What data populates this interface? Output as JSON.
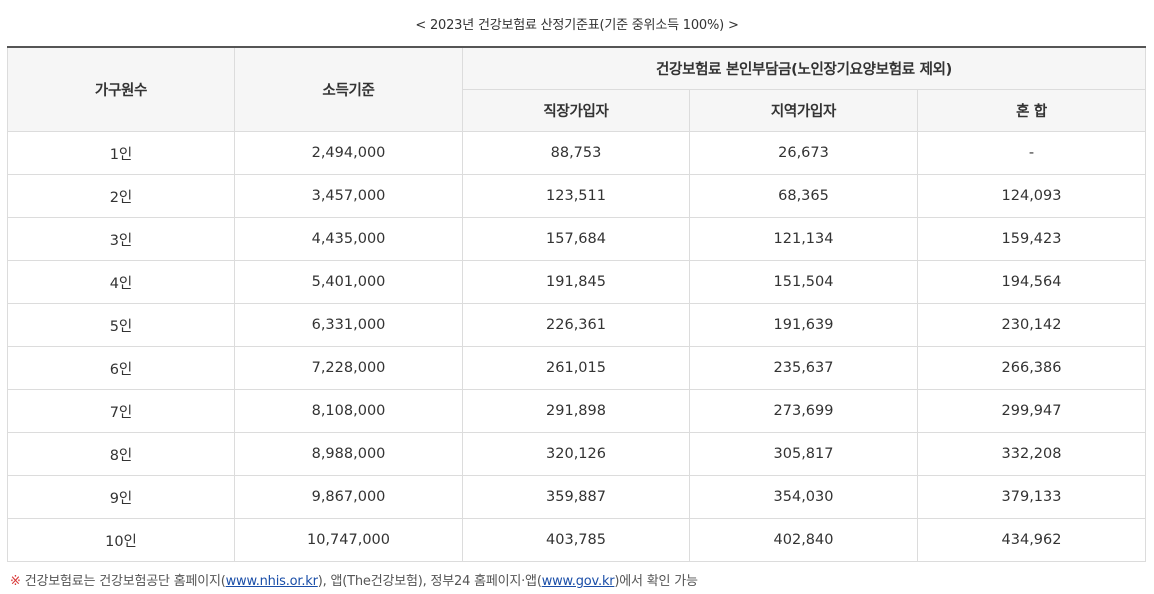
{
  "caption": "< 2023년 건강보험료 산정기준표(기준 중위소득 100%) >",
  "table": {
    "headers": {
      "household": "가구원수",
      "income": "소득기준",
      "premium_group": "건강보험료 본인부담금(노인장기요양보험료 제외)",
      "workplace": "직장가입자",
      "regional": "지역가입자",
      "mixed": "혼 합"
    },
    "rows": [
      {
        "household": "1인",
        "income": "2,494,000",
        "workplace": "88,753",
        "regional": "26,673",
        "mixed": "-"
      },
      {
        "household": "2인",
        "income": "3,457,000",
        "workplace": "123,511",
        "regional": "68,365",
        "mixed": "124,093"
      },
      {
        "household": "3인",
        "income": "4,435,000",
        "workplace": "157,684",
        "regional": "121,134",
        "mixed": "159,423"
      },
      {
        "household": "4인",
        "income": "5,401,000",
        "workplace": "191,845",
        "regional": "151,504",
        "mixed": "194,564"
      },
      {
        "household": "5인",
        "income": "6,331,000",
        "workplace": "226,361",
        "regional": "191,639",
        "mixed": "230,142"
      },
      {
        "household": "6인",
        "income": "7,228,000",
        "workplace": "261,015",
        "regional": "235,637",
        "mixed": "266,386"
      },
      {
        "household": "7인",
        "income": "8,108,000",
        "workplace": "291,898",
        "regional": "273,699",
        "mixed": "299,947"
      },
      {
        "household": "8인",
        "income": "8,988,000",
        "workplace": "320,126",
        "regional": "305,817",
        "mixed": "332,208"
      },
      {
        "household": "9인",
        "income": "9,867,000",
        "workplace": "359,887",
        "regional": "354,030",
        "mixed": "379,133"
      },
      {
        "household": "10인",
        "income": "10,747,000",
        "workplace": "403,785",
        "regional": "402,840",
        "mixed": "434,962"
      }
    ]
  },
  "footnote": {
    "mark": "※",
    "text_1": "건강보험료는 건강보험공단 홈페이지(",
    "link_1": "www.nhis.or.kr",
    "text_2": "), 앱(The건강보험), 정부24 홈페이지·앱(",
    "link_2": "www.gov.kr",
    "text_3": ")에서 확인 가능"
  }
}
